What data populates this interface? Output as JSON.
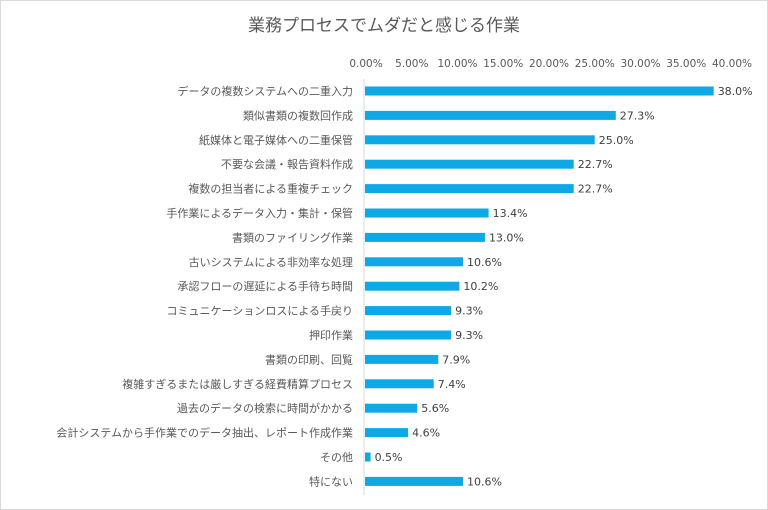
{
  "chart_data": {
    "type": "bar",
    "orientation": "horizontal",
    "title": "業務プロセスでムダだと感じる作業",
    "categories": [
      "データの複数システムへの二重入力",
      "類似書類の複数回作成",
      "紙媒体と電子媒体への二重保管",
      "不要な会議・報告資料作成",
      "複数の担当者による重複チェック",
      "手作業によるデータ入力・集計・保管",
      "書類のファイリング作業",
      "古いシステムによる非効率な処理",
      "承認フローの遅延による手待ち時間",
      "コミュニケーションロスによる手戻り",
      "押印作業",
      "書類の印刷、回覧",
      "複雑すぎるまたは厳しすぎる経費精算プロセス",
      "過去のデータの検索に時間がかかる",
      "会計システムから手作業でのデータ抽出、レポート作成作業",
      "その他",
      "特にない"
    ],
    "values": [
      38.0,
      27.3,
      25.0,
      22.7,
      22.7,
      13.4,
      13.0,
      10.6,
      10.2,
      9.3,
      9.3,
      7.9,
      7.4,
      5.6,
      4.6,
      0.5,
      10.6
    ],
    "data_labels": [
      "38.0%",
      "27.3%",
      "25.0%",
      "22.7%",
      "22.7%",
      "13.4%",
      "13.0%",
      "10.6%",
      "10.2%",
      "9.3%",
      "9.3%",
      "7.9%",
      "7.4%",
      "5.6%",
      "4.6%",
      "0.5%",
      "10.6%"
    ],
    "xticks": [
      "0.00%",
      "5.00%",
      "10.00%",
      "15.00%",
      "20.00%",
      "25.00%",
      "30.00%",
      "35.00%",
      "40.00%"
    ],
    "xlim": [
      0,
      40
    ],
    "xaxis_position": "top",
    "grid": false,
    "bar_color": "#0fa8e6"
  }
}
